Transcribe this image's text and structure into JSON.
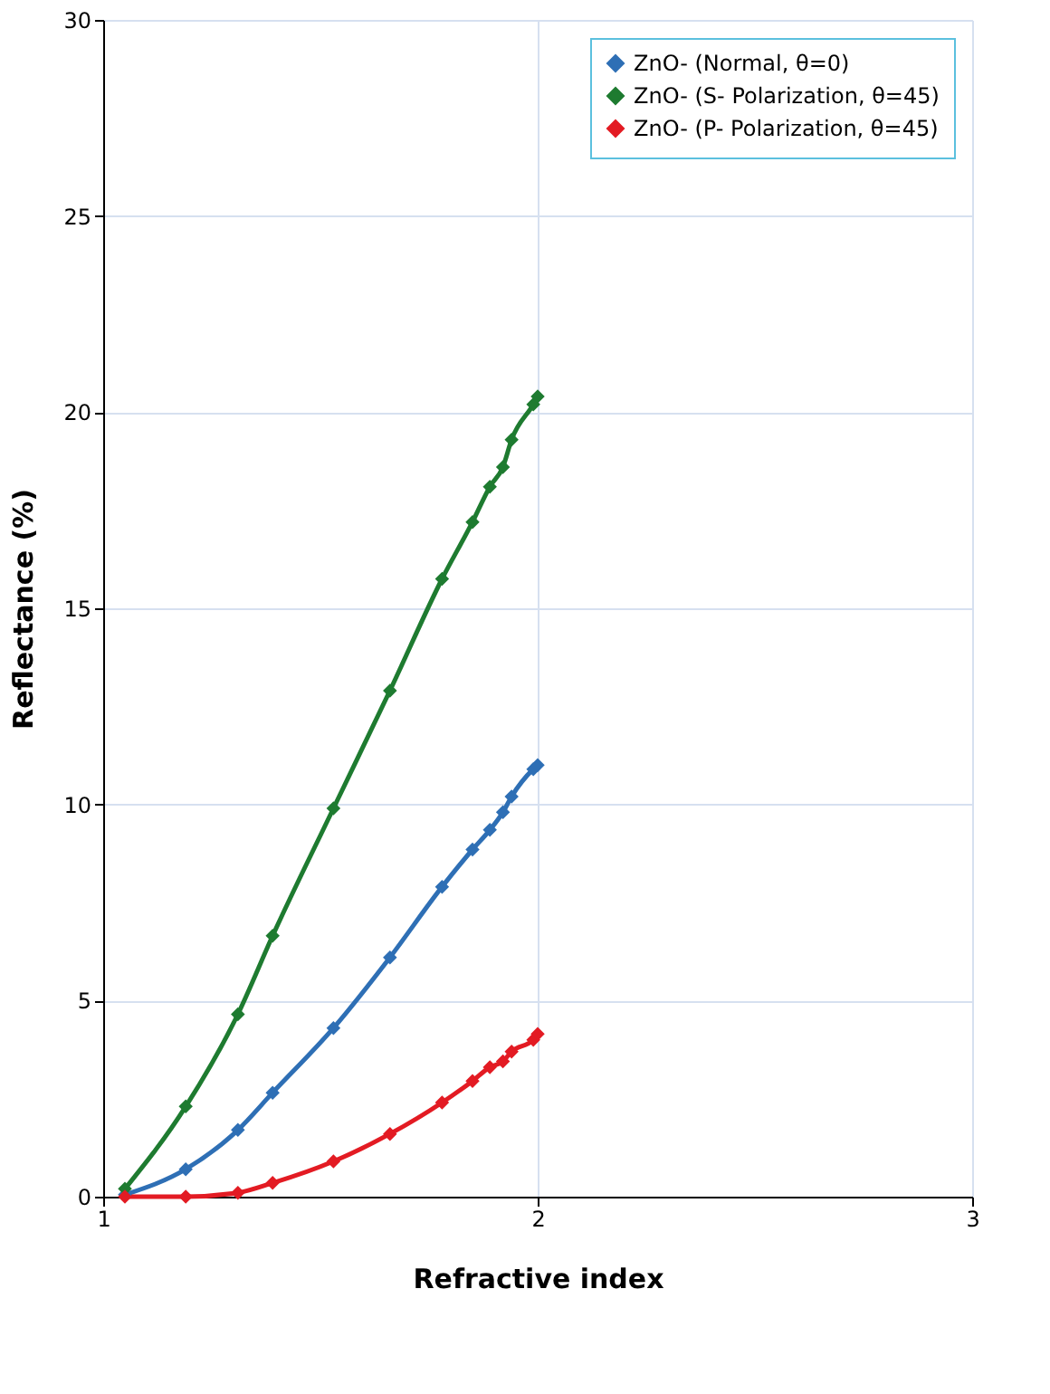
{
  "chart_data": {
    "type": "line",
    "xlabel": "Refractive index",
    "ylabel": "Reflectance (%)",
    "x": [
      1.05,
      1.19,
      1.31,
      1.39,
      1.53,
      1.66,
      1.78,
      1.85,
      1.89,
      1.92,
      1.94,
      1.99,
      2.0
    ],
    "series": [
      {
        "name": "ZnO- (Normal, θ=0)",
        "color": "#2e6fb5",
        "values": [
          0.05,
          0.7,
          1.7,
          2.65,
          4.3,
          6.1,
          7.9,
          8.85,
          9.35,
          9.8,
          10.2,
          10.9,
          11.0
        ]
      },
      {
        "name": "ZnO- (S- Polarization, θ=45)",
        "color": "#1e7b30",
        "values": [
          0.2,
          2.3,
          4.65,
          6.65,
          9.9,
          12.9,
          15.75,
          17.2,
          18.1,
          18.6,
          19.3,
          20.2,
          20.4
        ]
      },
      {
        "name": "ZnO- (P- Polarization, θ=45)",
        "color": "#e31b23",
        "values": [
          0.0,
          0.0,
          0.1,
          0.35,
          0.9,
          1.6,
          2.4,
          2.95,
          3.3,
          3.45,
          3.7,
          4.0,
          4.15
        ]
      }
    ],
    "xlim": [
      1,
      3
    ],
    "xticks": [
      1,
      2,
      3
    ],
    "ylim": [
      0,
      30
    ],
    "yticks": [
      0,
      5,
      10,
      15,
      20,
      25,
      30
    ],
    "grid": true,
    "legend": "top right",
    "marker": "diamond",
    "line_style": "solid"
  }
}
